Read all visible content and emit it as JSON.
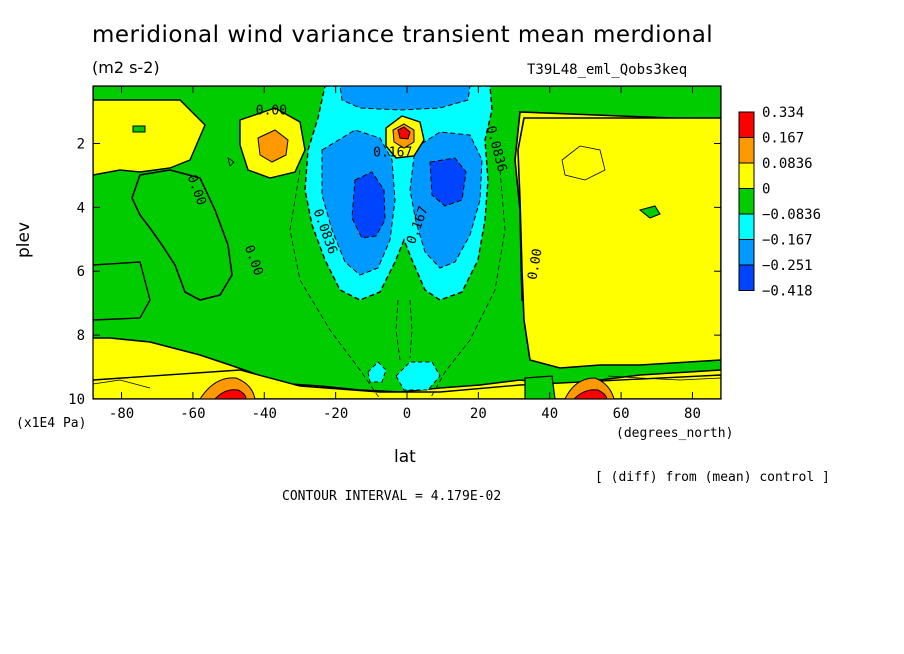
{
  "header": {
    "title": "meridional wind variance transient mean merdional",
    "units": "(m2 s-2)",
    "run_name": "T39L48_eml_Qobs3keq"
  },
  "footer": {
    "diff_note": "[ (diff) from (mean) control ]",
    "contour_interval": "CONTOUR INTERVAL = 4.179E-02"
  },
  "chart_data": {
    "type": "contour",
    "xlabel": "lat",
    "xunits": "(degrees_north)",
    "ylabel": "plev",
    "yunits": "(x1E4 Pa)",
    "xlim": [
      -88,
      88
    ],
    "ylim": [
      10,
      0.2
    ],
    "x_ticks": [
      -80,
      -60,
      -40,
      -20,
      0,
      20,
      40,
      60,
      80
    ],
    "x_tick_labels": [
      "-80",
      "-60",
      "-40",
      "-20",
      "0",
      "20",
      "40",
      "60",
      "80"
    ],
    "y_ticks": [
      2,
      4,
      6,
      8,
      10
    ],
    "y_tick_labels": [
      "2",
      "4",
      "6",
      "8",
      "10"
    ],
    "contour_labels": [
      {
        "text": "0.00",
        "lat": -38,
        "plev": 1.1
      },
      {
        "text": "0.00",
        "lat": -60,
        "plev": 3.5
      },
      {
        "text": "0.00",
        "lat": -44,
        "plev": 5.7
      },
      {
        "text": "0.00",
        "lat": 37,
        "plev": 5.8
      },
      {
        "text": "0.0836",
        "lat": -24,
        "plev": 4.8
      },
      {
        "text": "0.167",
        "lat": 4,
        "plev": 4.6
      },
      {
        "text": "0.167",
        "lat": -4,
        "plev": 2.4
      },
      {
        "text": "0.0836",
        "lat": 24,
        "plev": 2.2
      }
    ],
    "legend": {
      "placement": "right",
      "levels": [
        "0.334",
        "0.167",
        "0.0836",
        "0",
        "−0.0836",
        "−0.167",
        "−0.251",
        "−0.418"
      ],
      "colors": [
        "#ff0000",
        "#ff9900",
        "#ffff00",
        "#00cc00",
        "#00ffff",
        "#0099ff",
        "#0044ff"
      ]
    },
    "palette": {
      "strong_pos": "#ff0000",
      "pos": "#ff9900",
      "weak_pos": "#ffff00",
      "weak_neg": "#00cc00",
      "neg": "#00ffff",
      "mid_neg": "#0099ff",
      "strong_neg": "#0044ff"
    }
  }
}
